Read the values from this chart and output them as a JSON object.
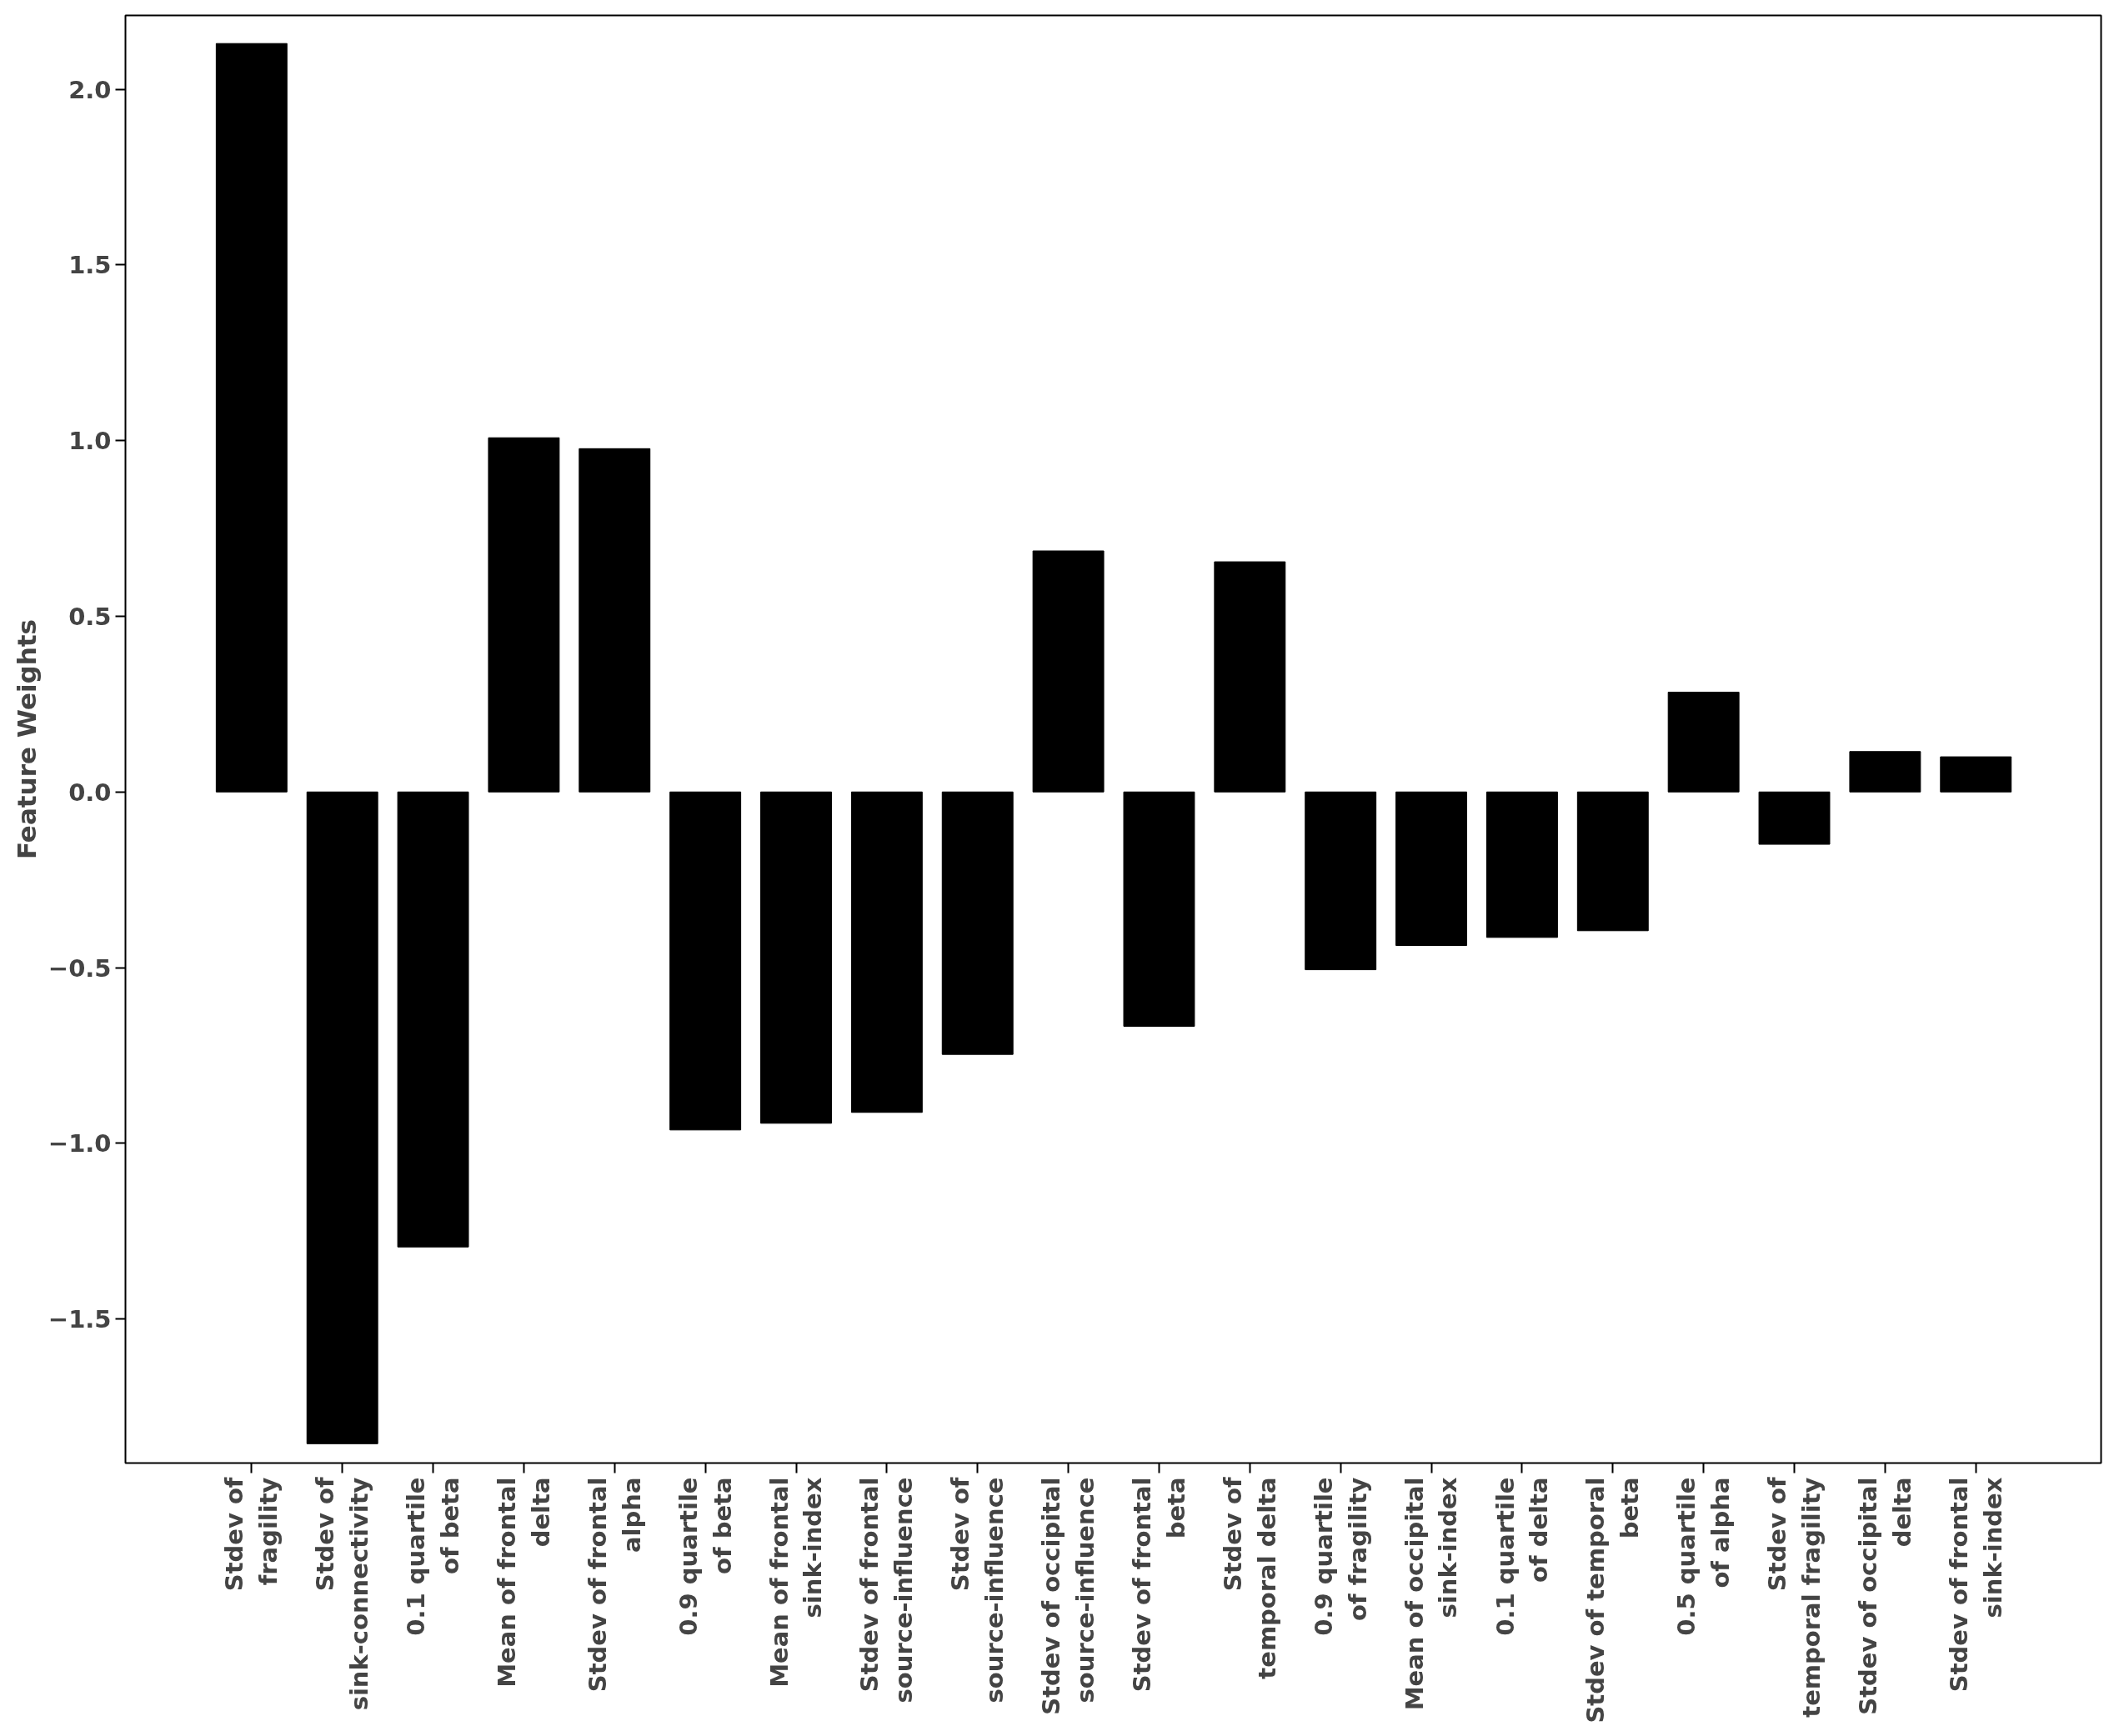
{
  "chart_data": {
    "type": "bar",
    "ylabel": "Feature Weights",
    "categories": [
      "Stdev of\nfragility",
      "Stdev of\nsink-connectivity",
      "0.1 quartile\nof beta",
      "Mean of frontal\ndelta",
      "Stdev of frontal\nalpha",
      "0.9 quartile\nof beta",
      "Mean of frontal\nsink-index",
      "Stdev of frontal\nsource-influence",
      "Stdev of\nsource-influence",
      "Stdev of occipital\nsource-influence",
      "Stdev of frontal\nbeta",
      "Stdev of\ntemporal delta",
      "0.9 quartile\nof fragility",
      "Mean of occipital\nsink-index",
      "0.1 quartile\nof delta",
      "Stdev of temporal\nbeta",
      "0.5 quartile\nof alpha",
      "Stdev of\ntemporal fragility",
      "Stdev of occipital\ndelta",
      "Stdev of frontal\nsink-index"
    ],
    "values": [
      2.13,
      -1.855,
      -1.295,
      1.008,
      0.977,
      -0.962,
      -0.943,
      -0.912,
      -0.747,
      0.686,
      -0.667,
      0.655,
      -0.506,
      -0.437,
      -0.414,
      -0.395,
      0.284,
      -0.149,
      0.115,
      0.1
    ],
    "color": "#000000",
    "ylim": [
      -1.91,
      2.21
    ],
    "yticks": [
      {
        "value": -1.5,
        "label": "−1.5"
      },
      {
        "value": -1.0,
        "label": "−1.0"
      },
      {
        "value": -0.5,
        "label": "−0.5"
      },
      {
        "value": 0.0,
        "label": "0.0"
      },
      {
        "value": 0.5,
        "label": "0.5"
      },
      {
        "value": 1.0,
        "label": "1.0"
      },
      {
        "value": 1.5,
        "label": "1.5"
      },
      {
        "value": 2.0,
        "label": "2.0"
      }
    ],
    "grid": false
  }
}
